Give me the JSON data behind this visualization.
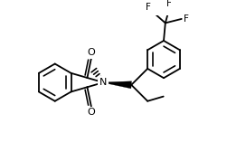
{
  "bg": "#ffffff",
  "lc": "#000000",
  "lw": 1.3,
  "fs": 7.5,
  "figsize": [
    2.72,
    1.68
  ],
  "dpi": 100,
  "atoms": {
    "O_top": "O",
    "O_bot": "O",
    "N": "N",
    "F1": "F",
    "F2": "F",
    "F3": "F"
  }
}
